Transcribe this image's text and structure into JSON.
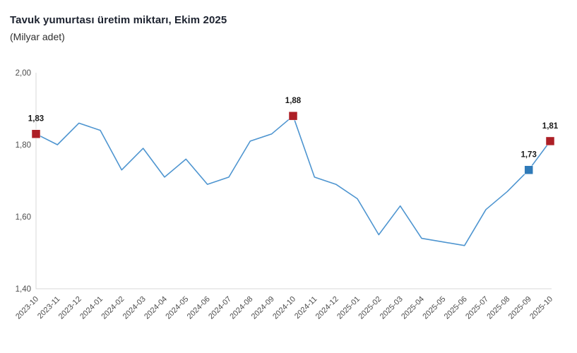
{
  "header": {
    "title": "Tavuk yumurtası üretim miktarı, Ekim 2025",
    "subtitle": "(Milyar adet)"
  },
  "chart_data": {
    "type": "line",
    "title": "Tavuk yumurtası üretim miktarı, Ekim 2025",
    "subtitle": "(Milyar adet)",
    "xlabel": "",
    "ylabel": "Milyar adet",
    "ylim": [
      1.4,
      2.0
    ],
    "grid": false,
    "legend": false,
    "categories": [
      "2023-10",
      "2023-11",
      "2023-12",
      "2024-01",
      "2024-02",
      "2024-03",
      "2024-04",
      "2024-05",
      "2024-06",
      "2024-07",
      "2024-08",
      "2024-09",
      "2024-10",
      "2024-11",
      "2024-12",
      "2025-01",
      "2025-02",
      "2025-03",
      "2025-04",
      "2025-05",
      "2025-06",
      "2025-07",
      "2025-08",
      "2025-09",
      "2025-10"
    ],
    "values": [
      1.83,
      1.8,
      1.86,
      1.84,
      1.73,
      1.79,
      1.71,
      1.76,
      1.69,
      1.71,
      1.81,
      1.83,
      1.88,
      1.71,
      1.69,
      1.65,
      1.55,
      1.63,
      1.54,
      1.53,
      1.52,
      1.62,
      1.67,
      1.73,
      1.81
    ],
    "y_ticks": [
      {
        "value": 2.0,
        "label": "2,00"
      },
      {
        "value": 1.8,
        "label": "1,80"
      },
      {
        "value": 1.6,
        "label": "1,60"
      },
      {
        "value": 1.4,
        "label": "1,40"
      }
    ],
    "labeled_points": [
      {
        "index": 0,
        "category": "2023-10",
        "value": 1.83,
        "label": "1,83",
        "marker": "red"
      },
      {
        "index": 12,
        "category": "2024-10",
        "value": 1.88,
        "label": "1,88",
        "marker": "red"
      },
      {
        "index": 23,
        "category": "2025-09",
        "value": 1.73,
        "label": "1,73",
        "marker": "blue"
      },
      {
        "index": 24,
        "category": "2025-10",
        "value": 1.81,
        "label": "1,81",
        "marker": "red"
      }
    ],
    "colors": {
      "line": "#4e95d0",
      "marker_red": "#ad1f26",
      "marker_blue": "#2f7ab8",
      "axis_line": "#d9d9d9",
      "tick_text": "#4d4d4d",
      "point_label_text": "#1a1a1a"
    }
  }
}
